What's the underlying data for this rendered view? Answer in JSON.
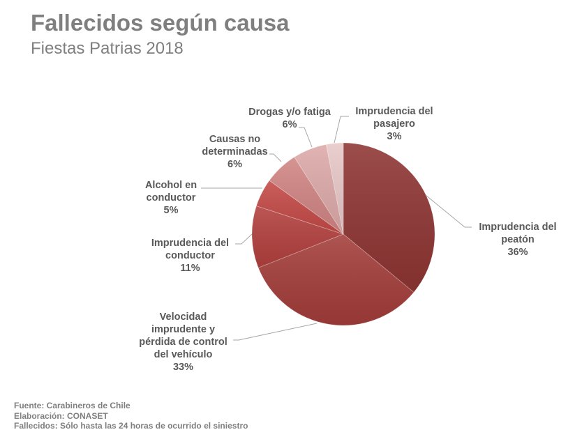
{
  "header": {
    "title": "Fallecidos según causa",
    "subtitle": "Fiestas Patrias 2018"
  },
  "chart_data": {
    "type": "pie",
    "title": "Fallecidos según causa",
    "subtitle": "Fiestas Patrias 2018",
    "start_angle": "12 o'clock, clockwise",
    "categories": [
      "Imprudencia del peatón",
      "Velocidad imprudente y pérdida de control del vehículo",
      "Imprudencia del conductor",
      "Alcohol en conductor",
      "Causas no determinadas",
      "Drogas y/o fatiga",
      "Imprudencia del pasajero"
    ],
    "values": [
      36,
      33,
      11,
      5,
      6,
      6,
      3
    ],
    "unit": "%",
    "colors": [
      "#8e3533",
      "#a33d3a",
      "#b2403e",
      "#c44a47",
      "#d08583",
      "#ddaaa9",
      "#e8c8c8"
    ],
    "legend": "none (data labels with leader lines)"
  },
  "labels": [
    {
      "lines": [
        "Imprudencia del",
        "peatón"
      ],
      "pct": "36%"
    },
    {
      "lines": [
        "Velocidad",
        "imprudente y",
        "pérdida de control",
        "del vehículo"
      ],
      "pct": "33%"
    },
    {
      "lines": [
        "Imprudencia del",
        "conductor"
      ],
      "pct": "11%"
    },
    {
      "lines": [
        "Alcohol en",
        "conductor"
      ],
      "pct": "5%"
    },
    {
      "lines": [
        "Causas no",
        "determinadas"
      ],
      "pct": "6%"
    },
    {
      "lines": [
        "Drogas y/o fatiga"
      ],
      "pct": "6%"
    },
    {
      "lines": [
        "Imprudencia del",
        "pasajero"
      ],
      "pct": "3%"
    }
  ],
  "footer": {
    "source": "Fuente: Carabineros de Chile",
    "elaboration": "Elaboración: CONASET",
    "note": "Fallecidos: Sólo hasta las 24 horas de ocurrido el siniestro"
  }
}
